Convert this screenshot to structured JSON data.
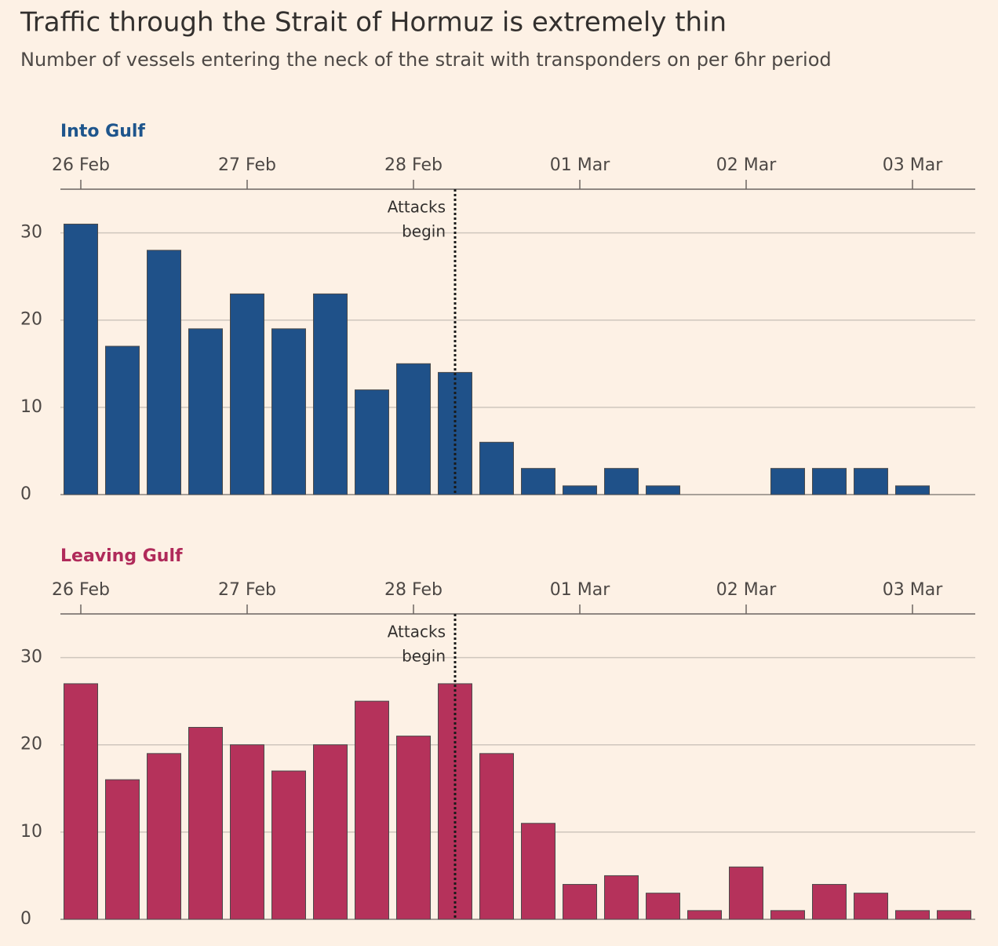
{
  "title": "Traffic through the Strait of Hormuz is extremely thin",
  "subtitle": "Number of vessels entering the neck of the strait with transponders on per 6hr period",
  "chart_data": [
    {
      "type": "bar",
      "title": "Into Gulf",
      "title_color": "#1e558c",
      "categories": [
        "26 Feb",
        null,
        null,
        null,
        "27 Feb",
        null,
        null,
        null,
        "28 Feb",
        null,
        null,
        null,
        "01 Mar",
        null,
        null,
        null,
        "02 Mar",
        null,
        null,
        null,
        "03 Mar",
        null
      ],
      "values": [
        31,
        17,
        28,
        19,
        23,
        19,
        23,
        12,
        15,
        14,
        6,
        3,
        1,
        3,
        1,
        0,
        0,
        3,
        3,
        3,
        1,
        0
      ],
      "color": "#1f5189",
      "ylim": [
        0,
        35
      ],
      "yticks": [
        0,
        10,
        20,
        30
      ],
      "grid": true,
      "annotation": [
        "Attacks",
        "begin"
      ]
    },
    {
      "type": "bar",
      "title": "Leaving Gulf",
      "title_color": "#b02a5a",
      "categories": [
        "26 Feb",
        null,
        null,
        null,
        "27 Feb",
        null,
        null,
        null,
        "28 Feb",
        null,
        null,
        null,
        "01 Mar",
        null,
        null,
        null,
        "02 Mar",
        null,
        null,
        null,
        "03 Mar",
        null
      ],
      "values": [
        27,
        16,
        19,
        22,
        20,
        17,
        20,
        25,
        21,
        27,
        19,
        11,
        4,
        5,
        3,
        1,
        6,
        1,
        4,
        3,
        1,
        1
      ],
      "color": "#b5325b",
      "ylim": [
        0,
        35
      ],
      "yticks": [
        0,
        10,
        20,
        30
      ],
      "grid": true,
      "annotation": [
        "Attacks",
        "begin"
      ]
    }
  ]
}
